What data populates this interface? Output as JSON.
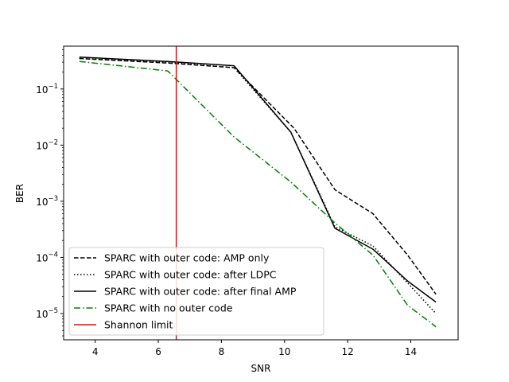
{
  "chart_data": {
    "type": "line",
    "xlabel": "SNR",
    "ylabel": "BER",
    "xlim": [
      3.0,
      15.5
    ],
    "ylim": [
      3.4e-06,
      0.58
    ],
    "yscale": "log",
    "grid": false,
    "legend_position": "lower-left",
    "x_ticks": [
      4,
      6,
      8,
      10,
      12,
      14
    ],
    "y_ticks": [
      {
        "value": 1e-05,
        "base": "10",
        "exp": "−5"
      },
      {
        "value": 0.0001,
        "base": "10",
        "exp": "−4"
      },
      {
        "value": 0.001,
        "base": "10",
        "exp": "−3"
      },
      {
        "value": 0.01,
        "base": "10",
        "exp": "−2"
      },
      {
        "value": 0.1,
        "base": "10",
        "exp": "−1"
      }
    ],
    "series": [
      {
        "name": "SPARC with outer code: AMP only",
        "color": "#000000",
        "dash": "dashed",
        "x": [
          3.5,
          6.3,
          8.4,
          10.3,
          11.6,
          12.8,
          13.9,
          14.8
        ],
        "y": [
          0.35,
          0.29,
          0.24,
          0.02,
          0.0016,
          0.0006,
          0.00011,
          2.2e-05
        ]
      },
      {
        "name": "SPARC with outer code: after LDPC",
        "color": "#000000",
        "dash": "dotted",
        "x": [
          3.5,
          6.3,
          8.4,
          10.2,
          11.6,
          12.8,
          13.9,
          14.8
        ],
        "y": [
          0.35,
          0.3,
          0.24,
          0.017,
          0.00035,
          0.00016,
          3.5e-05,
          1e-05
        ]
      },
      {
        "name": "SPARC with outer code: after final AMP",
        "color": "#000000",
        "dash": "solid",
        "x": [
          3.5,
          6.3,
          8.4,
          10.2,
          11.6,
          12.8,
          13.9,
          14.8
        ],
        "y": [
          0.37,
          0.31,
          0.26,
          0.017,
          0.00033,
          0.00014,
          3.8e-05,
          1.6e-05
        ]
      },
      {
        "name": "SPARC with no outer code",
        "color": "#008000",
        "dash": "dashdot",
        "x": [
          3.5,
          6.3,
          8.4,
          10.2,
          11.6,
          12.8,
          13.9,
          14.8
        ],
        "y": [
          0.31,
          0.21,
          0.014,
          0.0022,
          0.00041,
          0.00011,
          1.4e-05,
          5.8e-06
        ]
      }
    ],
    "vlines": [
      {
        "name": "Shannon limit",
        "x": 6.57,
        "color": "#ff0000"
      }
    ]
  }
}
